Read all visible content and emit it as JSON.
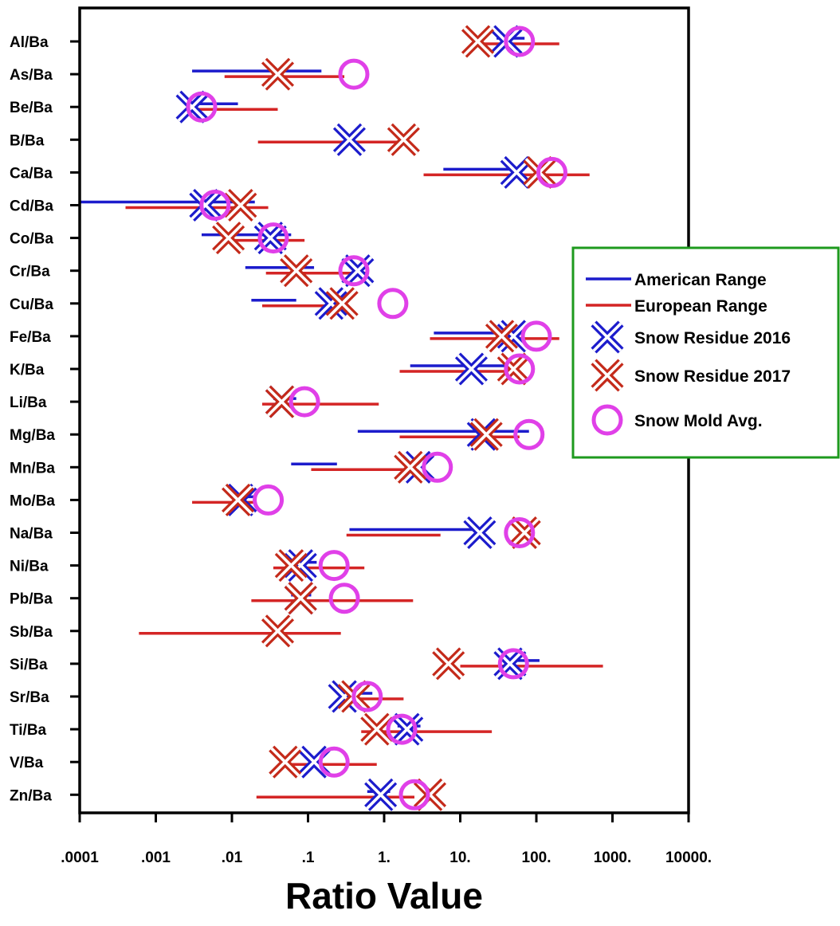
{
  "chart_data": {
    "type": "scatter",
    "orientation": "horizontal",
    "xscale": "log",
    "xlim": [
      0.0001,
      10000
    ],
    "xlabel": "Ratio Value",
    "xticks": [
      0.0001,
      0.001,
      0.01,
      0.1,
      1,
      10,
      100,
      1000,
      10000
    ],
    "xtick_labels": [
      ".0001",
      ".001",
      ".01",
      ".1",
      "1.",
      "10.",
      "100.",
      "1000.",
      "10000."
    ],
    "grid": false,
    "legend_position": "right",
    "colors": {
      "american": "#1c1ccc",
      "european": "#d42525",
      "residue2016": "#1c1ccc",
      "residue2017": "#c42a1a",
      "mold": "#e040e8",
      "legend_border": "#1e9a1e"
    },
    "categories": [
      "Al/Ba",
      "As/Ba",
      "Be/Ba",
      "B/Ba",
      "Ca/Ba",
      "Cd/Ba",
      "Co/Ba",
      "Cr/Ba",
      "Cu/Ba",
      "Fe/Ba",
      "K/Ba",
      "Li/Ba",
      "Mg/Ba",
      "Mn/Ba",
      "Mo/Ba",
      "Na/Ba",
      "Ni/Ba",
      "Pb/Ba",
      "Sb/Ba",
      "Si/Ba",
      "Sr/Ba",
      "Ti/Ba",
      "V/Ba",
      "Zn/Ba"
    ],
    "series": [
      {
        "name": "American Range",
        "marker": "range",
        "color": "#1c1ccc",
        "values": [
          [
            30,
            70
          ],
          [
            0.003,
            0.15
          ],
          [
            0.0025,
            0.012
          ],
          null,
          [
            6,
            70
          ],
          [
            0.0001,
            0.02
          ],
          [
            0.004,
            0.06
          ],
          [
            0.015,
            0.12
          ],
          [
            0.018,
            0.07
          ],
          [
            4.5,
            55
          ],
          [
            2.2,
            60
          ],
          [
            0.035,
            0.07
          ],
          [
            0.45,
            80
          ],
          [
            0.06,
            0.24
          ],
          [
            0.011,
            0.02
          ],
          [
            0.35,
            22
          ],
          [
            0.055,
            0.13
          ],
          [
            0.06,
            0.11
          ],
          null,
          [
            40,
            110
          ],
          [
            0.25,
            0.7
          ],
          [
            1.5,
            3
          ],
          [
            0.1,
            0.15
          ],
          [
            0.6,
            1.2
          ]
        ]
      },
      {
        "name": "European Range",
        "marker": "range",
        "color": "#d42525",
        "values": [
          [
            15,
            200
          ],
          [
            0.008,
            0.3
          ],
          [
            0.003,
            0.04
          ],
          [
            0.022,
            1.5
          ],
          [
            3.3,
            500
          ],
          [
            0.0004,
            0.03
          ],
          [
            0.008,
            0.09
          ],
          [
            0.028,
            0.6
          ],
          [
            0.025,
            0.3
          ],
          [
            4,
            200
          ],
          [
            1.6,
            60
          ],
          [
            0.025,
            0.85
          ],
          [
            1.6,
            60
          ],
          [
            0.11,
            3
          ],
          [
            0.003,
            0.02
          ],
          [
            0.32,
            5.5
          ],
          [
            0.035,
            0.55
          ],
          [
            0.018,
            2.4
          ],
          [
            0.0006,
            0.27
          ],
          [
            10,
            750
          ],
          [
            0.25,
            1.8
          ],
          [
            0.5,
            26
          ],
          [
            0.055,
            0.8
          ],
          [
            0.021,
            2.5
          ]
        ]
      },
      {
        "name": "Snow Residue 2016",
        "marker": "x",
        "color": "#1c1ccc",
        "values": [
          40,
          null,
          0.003,
          0.35,
          55,
          0.0045,
          0.032,
          0.45,
          0.2,
          50,
          14,
          0.045,
          20,
          2.8,
          0.013,
          18,
          0.08,
          0.08,
          null,
          45,
          0.3,
          2,
          0.12,
          0.9
        ]
      },
      {
        "name": "Snow Residue 2017",
        "marker": "x",
        "color": "#c42a1a",
        "values": [
          17,
          0.04,
          null,
          1.8,
          110,
          0.013,
          0.009,
          0.07,
          0.28,
          35,
          50,
          0.045,
          22,
          2.2,
          0.012,
          70,
          0.06,
          0.08,
          0.04,
          7,
          0.4,
          0.8,
          0.05,
          4
        ]
      },
      {
        "name": "Snow Mold Avg.",
        "marker": "circle",
        "color": "#e040e8",
        "values": [
          60,
          0.4,
          0.004,
          null,
          160,
          0.006,
          0.035,
          0.4,
          1.3,
          100,
          60,
          0.09,
          80,
          5,
          0.03,
          60,
          0.22,
          0.3,
          null,
          50,
          0.6,
          1.7,
          0.22,
          2.5
        ]
      }
    ],
    "legend": [
      {
        "label": "American Range",
        "marker": "range",
        "color": "#1c1ccc"
      },
      {
        "label": "European Range",
        "marker": "range",
        "color": "#d42525"
      },
      {
        "label": "Snow Residue 2016",
        "marker": "x",
        "color": "#1c1ccc"
      },
      {
        "label": "Snow Residue 2017",
        "marker": "x",
        "color": "#c42a1a"
      },
      {
        "label": "Snow Mold Avg.",
        "marker": "circle",
        "color": "#e040e8"
      }
    ]
  }
}
